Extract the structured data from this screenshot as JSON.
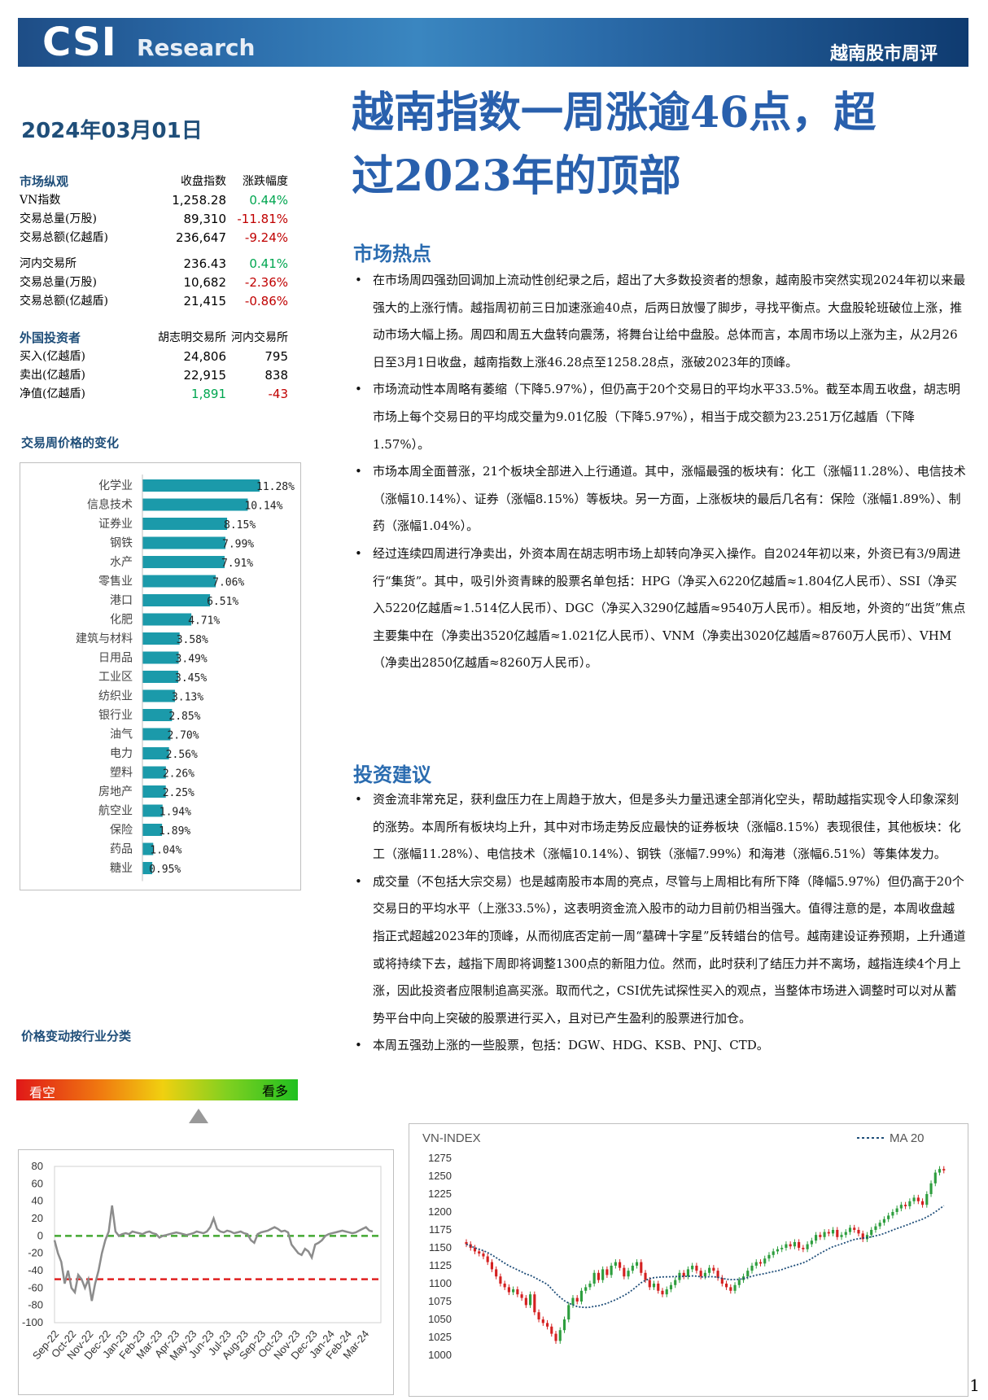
{
  "header": {
    "logo_main": "CSI",
    "logo_sub": "Research",
    "tag": "越南股市周评"
  },
  "date": "2024年03月01日",
  "title_line1": "越南指数一周涨逾46点，超",
  "title_line2": "过2023年的顶部",
  "market_overview": {
    "title": "市场纵观",
    "col2": "收盘指数",
    "col3": "涨跌幅度",
    "rows": [
      {
        "label": "VN指数",
        "value": "1,258.28",
        "change": "0.44%"
      },
      {
        "label": "交易总量(万股)",
        "value": "89,310",
        "change": "-11.81%"
      },
      {
        "label": "交易总额(亿越盾)",
        "value": "236,647",
        "change": "-9.24%"
      },
      {
        "label": "河内交易所",
        "value": "236.43",
        "change": "0.41%"
      },
      {
        "label": "交易总量(万股)",
        "value": "10,682",
        "change": "-2.36%"
      },
      {
        "label": "交易总额(亿越盾)",
        "value": "21,415",
        "change": "-0.86%"
      }
    ]
  },
  "foreign": {
    "title": "外国投资者",
    "col2": "胡志明交易所",
    "col3": "河内交易所",
    "rows": [
      {
        "label": "买入(亿越盾)",
        "hcm": "24,806",
        "hn": "795"
      },
      {
        "label": "卖出(亿越盾)",
        "hcm": "22,915",
        "hn": "838"
      },
      {
        "label": "净值(亿越盾)",
        "hcm": "1,891",
        "hn": "-43"
      }
    ]
  },
  "weekly_change_title": "交易周价格的变化",
  "sector_title": "价格变动按行业分类",
  "gauge": {
    "left": "看空",
    "right": "看多"
  },
  "chart_data": [
    {
      "type": "bar",
      "orientation": "horizontal",
      "categories": [
        "化学业",
        "信息技术",
        "证券业",
        "钢铁",
        "水产",
        "零售业",
        "港口",
        "化肥",
        "建筑与材料",
        "日用品",
        "工业区",
        "纺织业",
        "银行业",
        "油气",
        "电力",
        "塑料",
        "房地产",
        "航空业",
        "保险",
        "药品",
        "糖业"
      ],
      "values": [
        11.28,
        10.14,
        8.15,
        7.99,
        7.91,
        7.06,
        6.51,
        4.71,
        3.58,
        3.49,
        3.45,
        3.13,
        2.85,
        2.7,
        2.56,
        2.26,
        2.25,
        1.94,
        1.89,
        1.04,
        0.95
      ],
      "value_labels": [
        "11.28%",
        "10.14%",
        "8.15%",
        "7.99%",
        "7.91%",
        "7.06%",
        "6.51%",
        "4.71%",
        "3.58%",
        "3.49%",
        "3.45%",
        "3.13%",
        "2.85%",
        "2.70%",
        "2.56%",
        "2.26%",
        "2.25%",
        "1.94%",
        "1.89%",
        "1.04%",
        "0.95%"
      ],
      "color": "#1b9aaa"
    },
    {
      "type": "line",
      "x_ticks": [
        "Sep-22",
        "Oct-22",
        "Nov-22",
        "Dec-22",
        "Jan-23",
        "Feb-23",
        "Mar-23",
        "Apr-23",
        "May-23",
        "Jun-23",
        "Jul-23",
        "Aug-23",
        "Sep-23",
        "Oct-23",
        "Nov-23",
        "Dec-23",
        "Jan-24",
        "Feb-24",
        "Mar-24"
      ],
      "y_ticks": [
        "80",
        "60",
        "40",
        "20",
        "0",
        "-20",
        "-40",
        "-60",
        "-80",
        "-100"
      ],
      "ylim": [
        -100,
        80
      ],
      "reference_lines": [
        {
          "y": 0,
          "color": "#44a832"
        },
        {
          "y": -50,
          "color": "#e02020"
        }
      ],
      "series_color": "#8c8c8c",
      "values": [
        -5,
        -20,
        -30,
        -55,
        -40,
        -60,
        -65,
        -45,
        -50,
        -60,
        -50,
        -75,
        -55,
        -40,
        -20,
        -5,
        5,
        35,
        5,
        0,
        2,
        3,
        2,
        5,
        4,
        3,
        2,
        4,
        5,
        3,
        2,
        -2,
        0,
        1,
        2,
        3,
        4,
        3,
        2,
        1,
        2,
        3,
        5,
        4,
        3,
        5,
        10,
        20,
        8,
        5,
        4,
        6,
        5,
        3,
        4,
        5,
        3,
        2,
        -5,
        -8,
        2,
        4,
        5,
        6,
        8,
        10,
        8,
        5,
        6,
        4,
        -10,
        -15,
        -20,
        -22,
        -15,
        -18,
        -25,
        -10,
        -8,
        -5,
        0,
        2,
        3,
        4,
        5,
        6,
        5,
        4,
        3,
        4,
        6,
        8,
        10,
        6,
        5
      ]
    },
    {
      "type": "candlestick",
      "title": "VN-INDEX",
      "legend": "MA 20",
      "y_ticks": [
        "1275",
        "1250",
        "1225",
        "1200",
        "1175",
        "1150",
        "1125",
        "1100",
        "1075",
        "1050",
        "1025",
        "1000"
      ],
      "ylim": [
        1000,
        1275
      ],
      "up_color": "#2e9e3e",
      "down_color": "#d42020",
      "ma_color": "#1f4e79",
      "closes": [
        1155,
        1150,
        1145,
        1142,
        1138,
        1130,
        1120,
        1110,
        1100,
        1095,
        1088,
        1092,
        1085,
        1080,
        1070,
        1085,
        1060,
        1050,
        1045,
        1040,
        1030,
        1020,
        1035,
        1050,
        1070,
        1080,
        1075,
        1090,
        1095,
        1100,
        1115,
        1105,
        1120,
        1112,
        1125,
        1130,
        1122,
        1110,
        1118,
        1125,
        1130,
        1115,
        1105,
        1095,
        1100,
        1090,
        1085,
        1092,
        1098,
        1105,
        1115,
        1110,
        1120,
        1125,
        1118,
        1110,
        1115,
        1122,
        1118,
        1108,
        1100,
        1095,
        1090,
        1098,
        1105,
        1110,
        1118,
        1125,
        1130,
        1128,
        1135,
        1140,
        1145,
        1148,
        1150,
        1155,
        1152,
        1158,
        1150,
        1148,
        1155,
        1160,
        1168,
        1165,
        1172,
        1170,
        1175,
        1165,
        1168,
        1172,
        1178,
        1175,
        1170,
        1162,
        1168,
        1175,
        1180,
        1185,
        1190,
        1195,
        1200,
        1205,
        1210,
        1208,
        1215,
        1220,
        1215,
        1210,
        1225,
        1240,
        1255,
        1260,
        1258
      ]
    }
  ],
  "section_hot": "市场热点",
  "hot_bullets": [
    "在市场周四强劲回调加上流动性创纪录之后，超出了大多数投资者的想象，越南股市突然实现2024年初以来最强大的上涨行情。越指周初前三日加速涨逾40点，后两日放慢了脚步，寻找平衡点。大盘股轮班破位上涨，推动市场大幅上扬。周四和周五大盘转向震荡，将舞台让给中盘股。总体而言，本周市场以上涨为主，从2月26日至3月1日收盘，越南指数上涨46.28点至1258.28点，涨破2023年的顶峰。",
    "市场流动性本周略有萎缩（下降5.97%），但仍高于20个交易日的平均水平33.5%。截至本周五收盘，胡志明市场上每个交易日的平均成交量为9.01亿股（下降5.97%），相当于成交额为23.251万亿越盾（下降1.57%）。",
    "市场本周全面普涨，21个板块全部进入上行通道。其中，涨幅最强的板块有：化工（涨幅11.28%）、电信技术（涨幅10.14%）、证券（涨幅8.15%）等板块。另一方面，上涨板块的最后几名有：保险（涨幅1.89%）、制药（涨幅1.04%）。",
    "经过连续四周进行净卖出，外资本周在胡志明市场上却转向净买入操作。自2024年初以来，外资已有3/9周进行“集货”。其中，吸引外资青睐的股票名单包括：HPG（净买入6220亿越盾≈1.804亿人民币）、SSI（净买入5220亿越盾≈1.514亿人民币）、DGC（净买入3290亿越盾≈9540万人民币）。相反地，外资的“出货”焦点主要集中在（净卖出3520亿越盾≈1.021亿人民币）、VNM（净卖出3020亿越盾≈8760万人民币）、VHM（净卖出2850亿越盾≈8260万人民币）。"
  ],
  "section_advice": "投资建议",
  "advice_bullets": [
    "资金流非常充足，获利盘压力在上周趋于放大，但是多头力量迅速全部消化空头，帮助越指实现令人印象深刻的涨势。本周所有板块均上升，其中对市场走势反应最快的证券板块（涨幅8.15%）表现很佳，其他板块：化工（涨幅11.28%）、电信技术（涨幅10.14%）、钢铁（涨幅7.99%）和海港（涨幅6.51%）等集体发力。",
    "成交量（不包括大宗交易）也是越南股市本周的亮点，尽管与上周相比有所下降（降幅5.97%）但仍高于20个交易日的平均水平（上涨33.5%），这表明资金流入股市的动力目前仍相当强大。值得注意的是，本周收盘越指正式超越2023年的顶峰，从而彻底否定前一周“墓碑十字星”反转蜡台的信号。越南建设证券预期，上升通道或将持续下去，越指下周即将调整1300点的新阻力位。然而，此时获利了结压力并不离场，越指连续4个月上涨，因此投资者应限制追高买涨。取而代之，CSI优先试探性买入的观点，当整体市场进入调整时可以对从蓄势平台中向上突破的股票进行买入，且对已产生盈利的股票进行加仓。",
    "本周五强劲上涨的一些股票，包括：DGW、HDG、KSB、PNJ、CTD。"
  ],
  "page_number": "1"
}
